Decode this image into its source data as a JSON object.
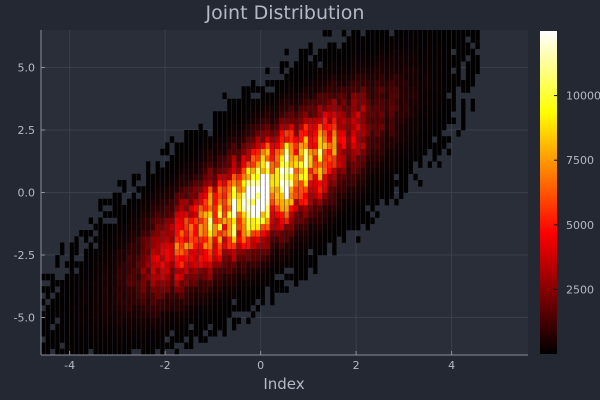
{
  "chart_data": {
    "type": "heatmap",
    "title": "Joint Distribution",
    "xlabel": "Index",
    "ylabel": "",
    "xlim": [
      -4.6,
      5.6
    ],
    "ylim": [
      -6.5,
      6.5
    ],
    "x_ticks": [
      -4,
      -2,
      0,
      2,
      4
    ],
    "y_ticks": [
      -5.0,
      -2.5,
      0.0,
      2.5,
      5.0
    ],
    "x_tick_labels": [
      "-4",
      "-2",
      "0",
      "2",
      "4"
    ],
    "y_tick_labels": [
      "-5.0",
      "-2.5",
      "0.0",
      "2.5",
      "5.0"
    ],
    "grid": true,
    "colormap": "hot",
    "colorbar": {
      "range": [
        0,
        12500
      ],
      "ticks": [
        2500,
        5000,
        7500,
        10000
      ],
      "tick_labels": [
        "2500",
        "5000",
        "7500",
        "10000"
      ]
    },
    "distribution": {
      "kind": "bivariate-normal",
      "mean_x": 0.0,
      "mean_y": 0.0,
      "sd_x": 1.3,
      "sd_y": 2.0,
      "correlation": 0.8,
      "peak_count": 12000,
      "bin_width_x": 0.1,
      "bin_height_y": 0.25
    }
  },
  "colors": {
    "background": "#242833",
    "plot_background": "#2a2e38",
    "grid": "#3a3f4b",
    "axis": "#8c909c",
    "text": "#b4b9c6"
  }
}
